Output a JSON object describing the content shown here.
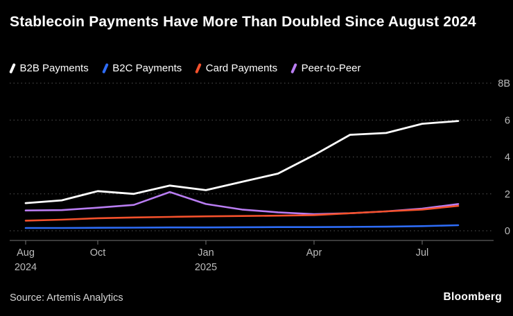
{
  "title": "Stablecoin Payments Have More Than Doubled Since August 2024",
  "source": "Source: Artemis Analytics",
  "brand": "Bloomberg",
  "colors": {
    "background": "#000000",
    "grid": "#565656",
    "axis": "#757575",
    "tick_label": "#bdbdbd",
    "title_text": "#ffffff"
  },
  "chart_data": {
    "type": "line",
    "title": "Stablecoin Payments Have More Than Doubled Since August 2024",
    "xlabel": "",
    "ylabel": "",
    "ylim": [
      0,
      8
    ],
    "grid": "horizontal-dotted",
    "legend_position": "top",
    "x": [
      "Aug 2024",
      "Sep 2024",
      "Oct 2024",
      "Nov 2024",
      "Dec 2024",
      "Jan 2025",
      "Feb 2025",
      "Mar 2025",
      "Apr 2025",
      "May 2025",
      "Jun 2025",
      "Jul 2025",
      "Aug 2025"
    ],
    "series": [
      {
        "name": "B2B Payments",
        "color": "#ffffff",
        "values": [
          1.5,
          1.65,
          2.15,
          2.0,
          2.45,
          2.2,
          2.65,
          3.1,
          4.1,
          5.2,
          5.3,
          5.8,
          5.95
        ]
      },
      {
        "name": "B2C Payments",
        "color": "#2e6cf6",
        "values": [
          0.15,
          0.15,
          0.16,
          0.17,
          0.18,
          0.18,
          0.19,
          0.2,
          0.2,
          0.21,
          0.22,
          0.25,
          0.3
        ]
      },
      {
        "name": "Card Payments",
        "color": "#f4512c",
        "values": [
          0.55,
          0.6,
          0.68,
          0.72,
          0.75,
          0.78,
          0.8,
          0.82,
          0.85,
          0.95,
          1.05,
          1.15,
          1.35
        ]
      },
      {
        "name": "Peer-to-Peer",
        "color": "#b97df2",
        "values": [
          1.1,
          1.12,
          1.25,
          1.4,
          2.1,
          1.45,
          1.15,
          1.0,
          0.9,
          0.95,
          1.05,
          1.2,
          1.45
        ]
      }
    ],
    "yticks": [
      {
        "value": 0,
        "label": "0"
      },
      {
        "value": 2,
        "label": "2"
      },
      {
        "value": 4,
        "label": "4"
      },
      {
        "value": 6,
        "label": "6"
      },
      {
        "value": 8,
        "label": "8B"
      }
    ],
    "xticks": [
      {
        "index": 0,
        "label": "Aug",
        "sublabel": "2024"
      },
      {
        "index": 2,
        "label": "Oct"
      },
      {
        "index": 5,
        "label": "Jan",
        "sublabel": "2025"
      },
      {
        "index": 8,
        "label": "Apr"
      },
      {
        "index": 11,
        "label": "Jul"
      }
    ]
  }
}
